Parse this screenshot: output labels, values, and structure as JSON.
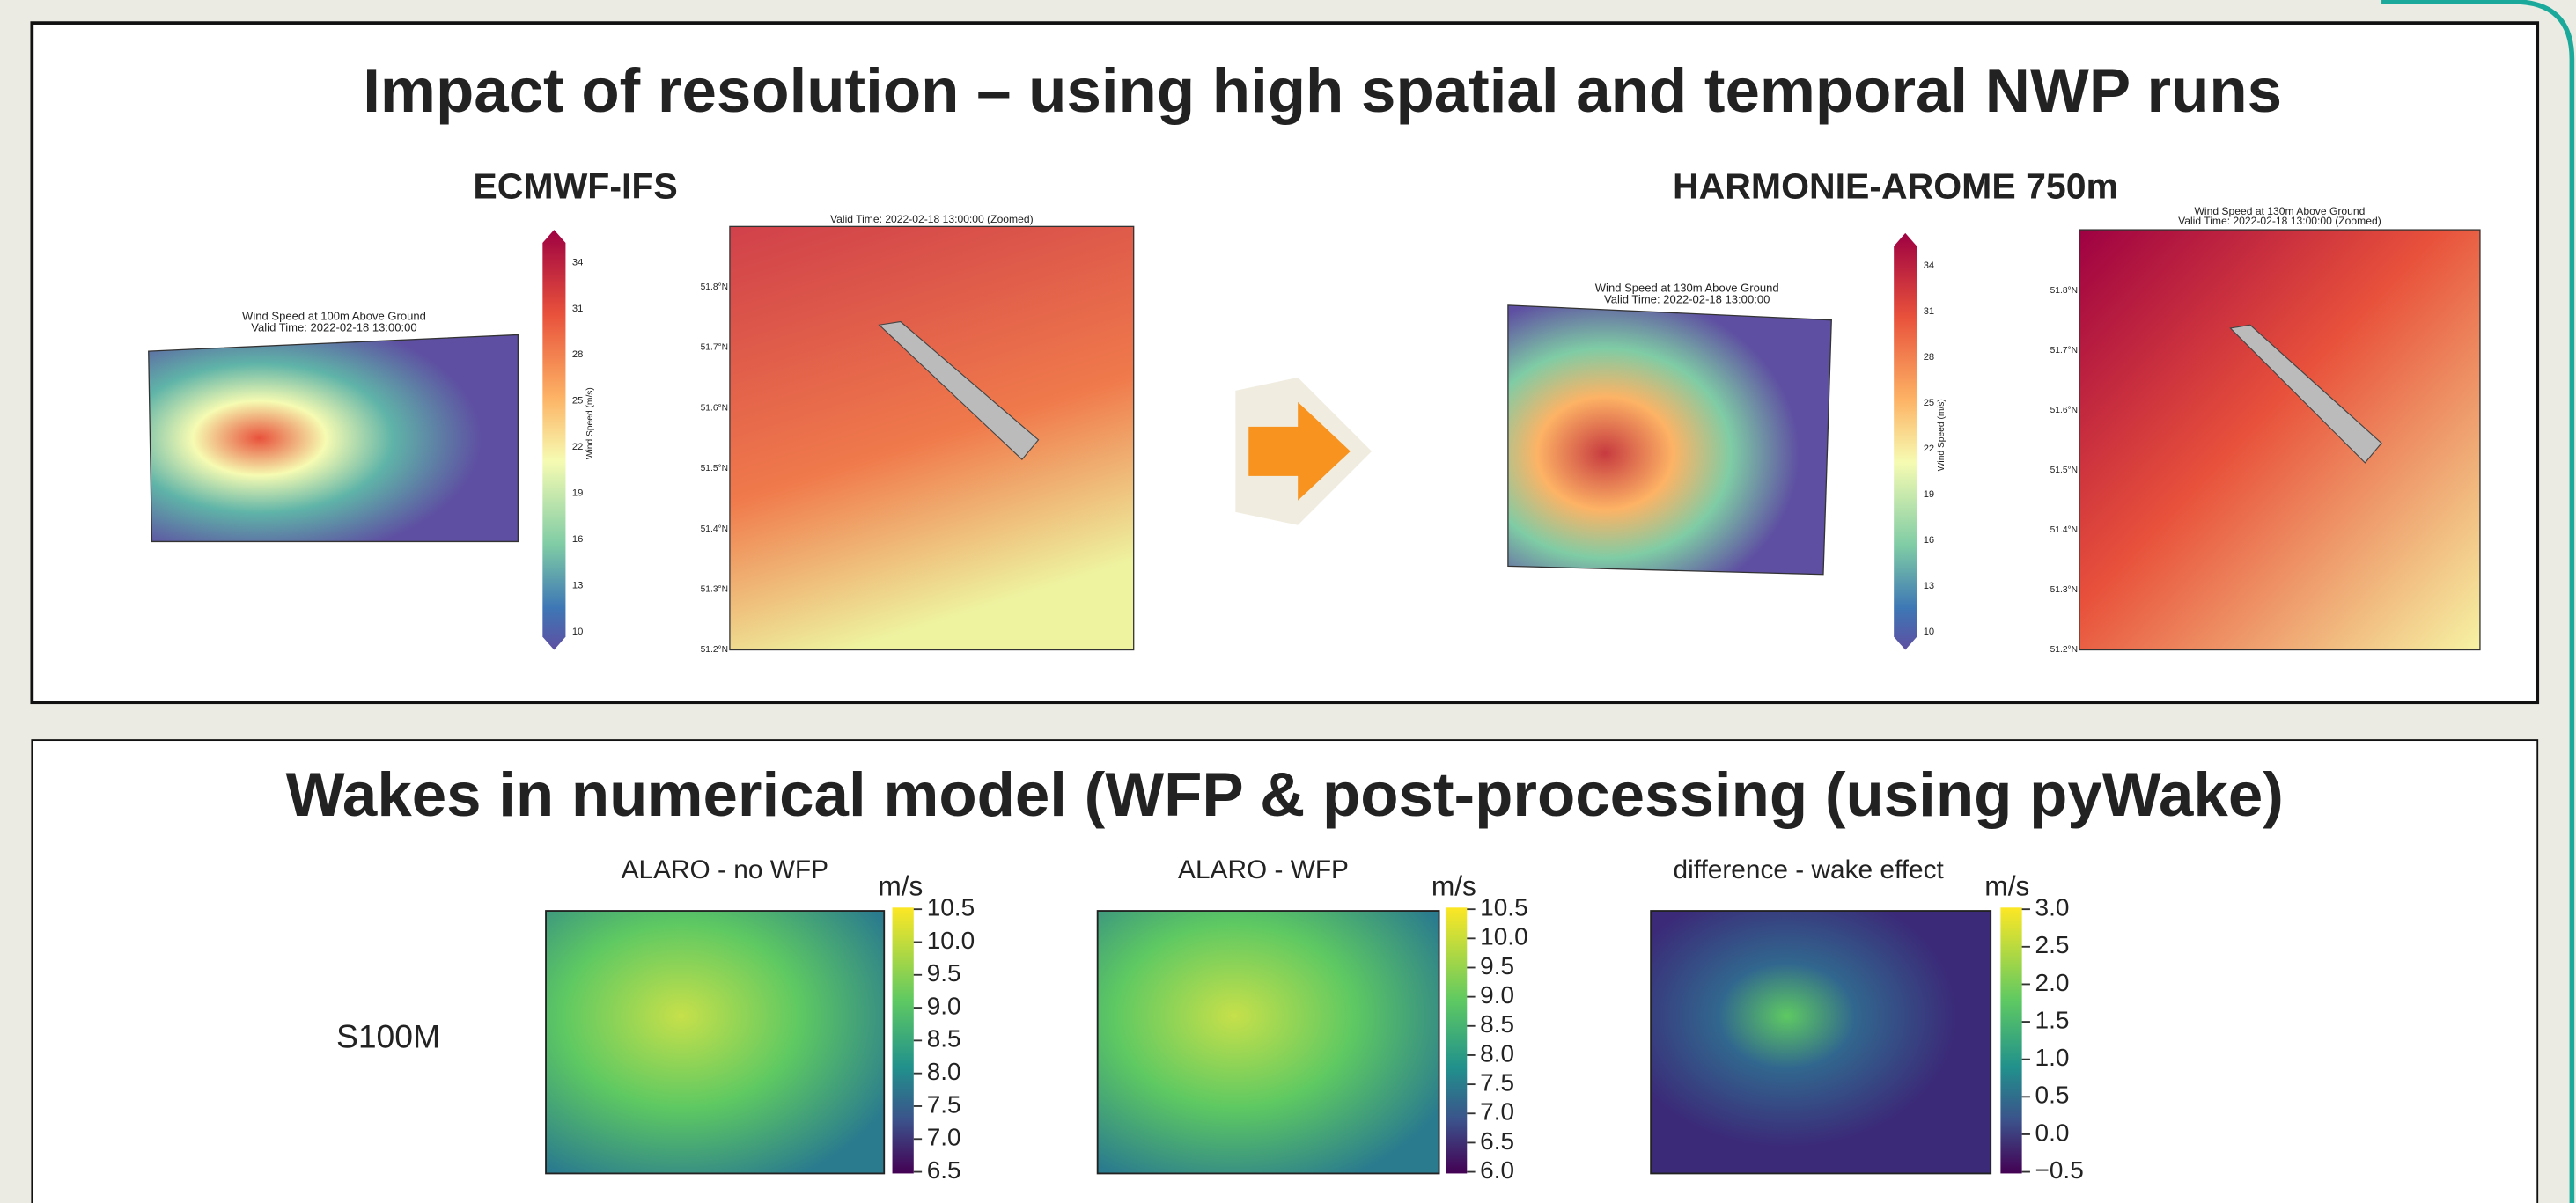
{
  "top_panel": {
    "title": "Impact of resolution – using high spatial and temporal NWP runs",
    "left": {
      "label": "ECMWF-IFS",
      "overview_title": [
        "Wind Speed at 100m Above Ground",
        "Valid Time: 2022-02-18 13:00:00"
      ],
      "zoom_title": [
        "Valid Time: 2022-02-18 13:00:00 (Zoomed)"
      ],
      "colorbar_ticks": [
        "34",
        "31",
        "28",
        "25",
        "22",
        "19",
        "16",
        "13",
        "10"
      ],
      "colorbar_label": "Wind Speed (m/s)",
      "zoom_lat_labels": [
        "51.8°N",
        "51.7°N",
        "51.6°N",
        "51.5°N",
        "51.4°N",
        "51.3°N",
        "51.2°N"
      ]
    },
    "right": {
      "label": "HARMONIE-AROME 750m",
      "overview_title": [
        "Wind Speed at 130m Above Ground",
        "Valid Time: 2022-02-18 13:00:00"
      ],
      "zoom_title": [
        "Wind Speed at 130m Above Ground",
        "Valid Time: 2022-02-18 13:00:00 (Zoomed)"
      ],
      "colorbar_ticks": [
        "34",
        "31",
        "28",
        "25",
        "22",
        "19",
        "16",
        "13",
        "10"
      ],
      "colorbar_label": "Wind Speed (m/s)",
      "zoom_lat_labels": [
        "51.8°N",
        "51.7°N",
        "51.6°N",
        "51.5°N",
        "51.4°N",
        "51.3°N",
        "51.2°N"
      ]
    }
  },
  "bottom_panel": {
    "title": "Wakes in numerical model (WFP & post-processing (using pyWake)",
    "row_label": "S100M",
    "maps": [
      {
        "title": "ALARO - no WFP",
        "unit": "m/s",
        "colorbar_ticks": [
          "10.5",
          "10.0",
          "9.5",
          "9.0",
          "8.5",
          "8.0",
          "7.5",
          "7.0",
          "6.5"
        ]
      },
      {
        "title": "ALARO - WFP",
        "unit": "m/s",
        "colorbar_ticks": [
          "10.5",
          "10.0",
          "9.5",
          "9.0",
          "8.5",
          "8.0",
          "7.5",
          "7.0",
          "6.5",
          "6.0"
        ]
      },
      {
        "title": "difference - wake effect",
        "unit": "m/s",
        "colorbar_ticks": [
          "3.0",
          "2.5",
          "2.0",
          "1.5",
          "1.0",
          "0.5",
          "0.0",
          "−0.5"
        ]
      }
    ]
  }
}
